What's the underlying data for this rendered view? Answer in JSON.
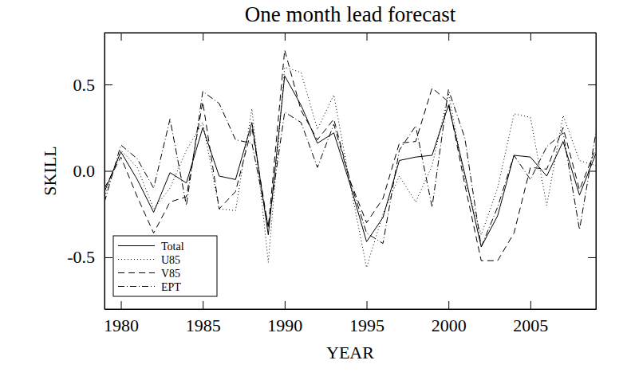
{
  "chart_data": {
    "type": "line",
    "title": "One month lead forecast",
    "x_label": "YEAR",
    "y_label": "SKILL",
    "x": [
      1979,
      1980,
      1981,
      1982,
      1983,
      1984,
      1985,
      1986,
      1987,
      1988,
      1989,
      1990,
      1991,
      1992,
      1993,
      1994,
      1995,
      1996,
      1997,
      1998,
      1999,
      2000,
      2001,
      2002,
      2003,
      2004,
      2005,
      2006,
      2007,
      2008,
      2009
    ],
    "xlim": [
      1979,
      2009
    ],
    "xticks": [
      1980,
      1985,
      1990,
      1995,
      2000,
      2005
    ],
    "ylim": [
      -0.8,
      0.8
    ],
    "yticks": [
      {
        "value": -0.5,
        "label": "-0.5"
      },
      {
        "value": 0,
        "label": "0.0"
      },
      {
        "value": 0.5,
        "label": "0.5"
      }
    ],
    "grid": false,
    "legend": "lower left",
    "series": [
      {
        "name": "Total",
        "color": "#000000",
        "line_style": "solid",
        "values": [
          -0.12,
          0.11,
          -0.05,
          -0.24,
          -0.01,
          -0.07,
          0.25,
          -0.03,
          -0.05,
          0.28,
          -0.37,
          0.55,
          0.38,
          0.16,
          0.22,
          -0.08,
          -0.41,
          -0.27,
          0.06,
          0.08,
          0.09,
          0.38,
          -0.02,
          -0.44,
          -0.26,
          0.09,
          0.08,
          -0.03,
          0.17,
          -0.14,
          0.1
        ]
      },
      {
        "name": "U85",
        "color": "#000000",
        "line_style": "dotted",
        "values": [
          -0.15,
          0.12,
          0.02,
          -0.22,
          -0.1,
          0.12,
          0.28,
          -0.22,
          -0.23,
          0.36,
          -0.53,
          0.6,
          0.57,
          0.24,
          0.44,
          -0.08,
          -0.56,
          -0.25,
          -0.03,
          -0.18,
          0.03,
          0.45,
          -0.05,
          -0.37,
          -0.1,
          0.33,
          0.31,
          -0.2,
          0.32,
          0.06,
          0.03
        ]
      },
      {
        "name": "V85",
        "color": "#000000",
        "line_style": "dashed",
        "values": [
          -0.1,
          0.08,
          -0.15,
          -0.36,
          -0.18,
          -0.15,
          0.4,
          -0.22,
          -0.12,
          0.25,
          -0.33,
          0.7,
          0.35,
          0.18,
          0.3,
          -0.06,
          -0.3,
          -0.16,
          0.16,
          0.17,
          0.48,
          0.4,
          -0.08,
          -0.52,
          -0.52,
          -0.36,
          0.02,
          0.01,
          0.25,
          -0.11,
          0.13
        ]
      },
      {
        "name": "EPT",
        "color": "#000000",
        "line_style": "dashdot",
        "values": [
          -0.18,
          0.15,
          0.07,
          -0.1,
          0.3,
          -0.2,
          0.46,
          0.39,
          0.18,
          0.16,
          -0.32,
          0.34,
          0.28,
          0.02,
          0.27,
          -0.06,
          -0.36,
          -0.42,
          0.12,
          0.26,
          -0.21,
          0.47,
          0.19,
          -0.44,
          -0.21,
          0.09,
          -0.05,
          0.14,
          0.22,
          -0.34,
          0.22
        ]
      }
    ]
  }
}
